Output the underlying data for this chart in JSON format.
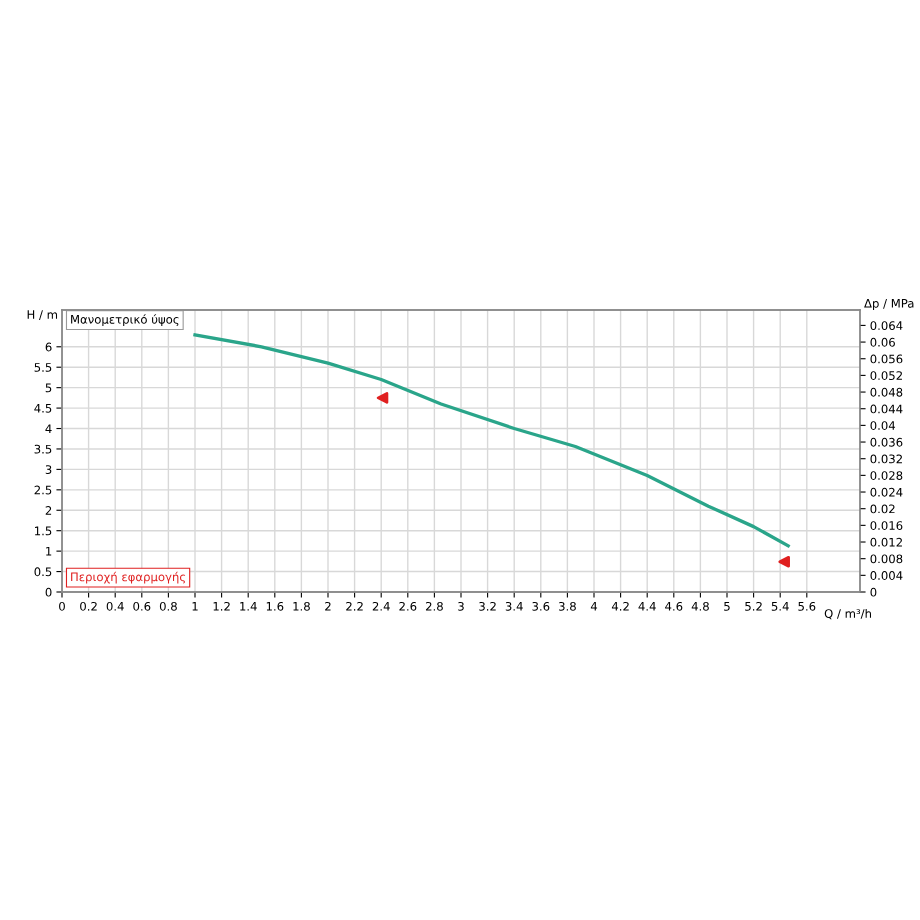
{
  "chart_data": {
    "type": "line",
    "title": "Μανομετρικό ύψος",
    "xlabel": "Q / m³/h",
    "ylabel": "H / m",
    "y2label": "Δp / MPa",
    "annotations": [
      "Περιοχή εφαρμογής"
    ],
    "xlim": [
      0,
      6.0
    ],
    "xticks": [
      0,
      0.2,
      0.4,
      0.6,
      0.8,
      1,
      1.2,
      1.4,
      1.6,
      1.8,
      2,
      2.2,
      2.4,
      2.6,
      2.8,
      3,
      3.2,
      3.4,
      3.6,
      3.8,
      4,
      4.2,
      4.4,
      4.6,
      4.8,
      5,
      5.2,
      5.4,
      5.6
    ],
    "ylim": [
      0,
      6.9
    ],
    "yticks": [
      0,
      0.5,
      1,
      1.5,
      2,
      2.5,
      3,
      3.5,
      4,
      4.5,
      5,
      5.5,
      6
    ],
    "y2lim": [
      0,
      0.0677
    ],
    "y2ticks": [
      0,
      0.004,
      0.008,
      0.012,
      0.016,
      0.02,
      0.024,
      0.028,
      0.032,
      0.036,
      0.04,
      0.044,
      0.048,
      0.052,
      0.056,
      0.06,
      0.064
    ],
    "grid": true,
    "series": [
      {
        "color": "#2aa58a",
        "x": [
          1.0,
          1.5,
          2.0,
          2.4,
          2.85,
          3.4,
          3.86,
          4.4,
          4.86,
          5.2,
          5.46
        ],
        "values": [
          6.29,
          6.0,
          5.6,
          5.2,
          4.6,
          4.0,
          3.56,
          2.85,
          2.1,
          1.6,
          1.13
        ]
      },
      {
        "type": "scatter",
        "color": "#e02020",
        "marker": "triangle",
        "x": [
          2.41,
          5.43
        ],
        "values": [
          4.75,
          0.74
        ]
      }
    ]
  }
}
